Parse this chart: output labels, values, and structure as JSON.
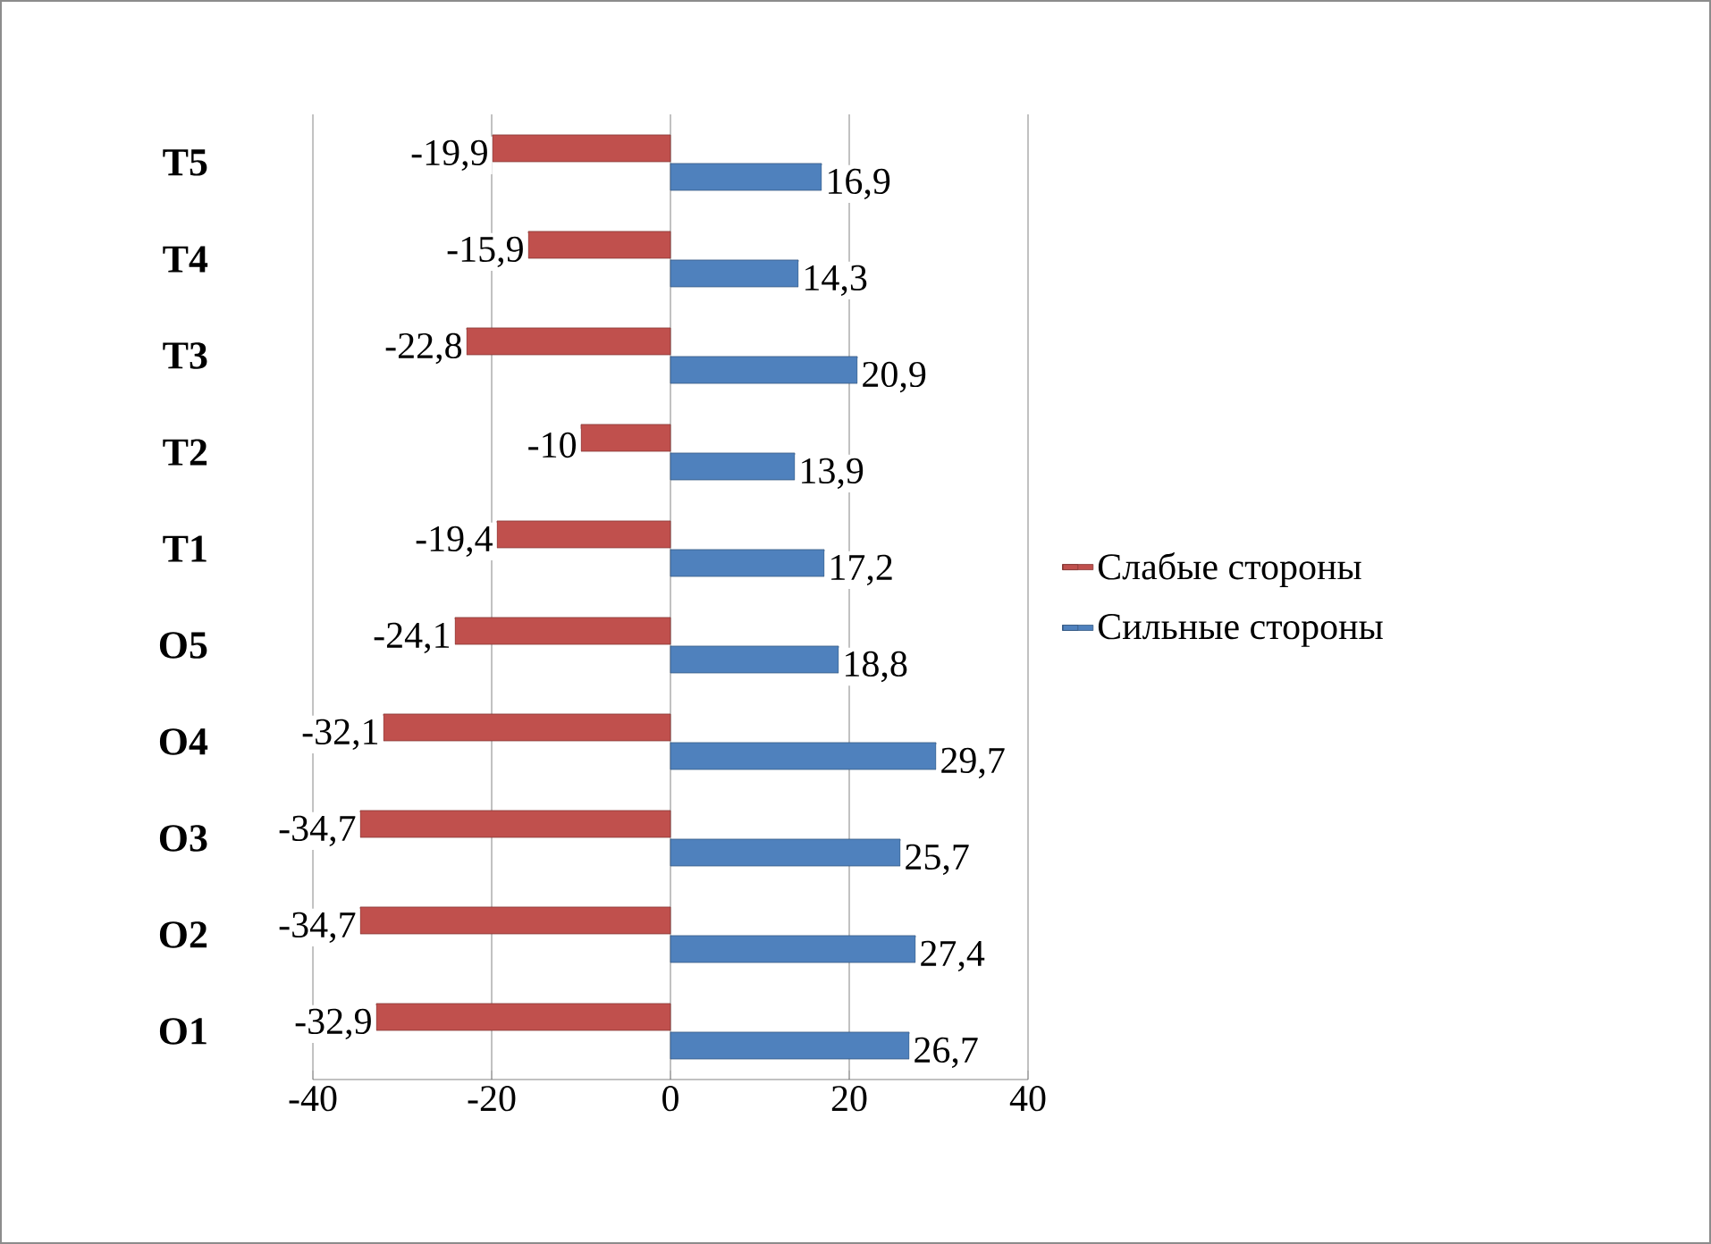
{
  "chart_data": {
    "type": "bar",
    "orientation": "horizontal",
    "categories": [
      "T5",
      "T4",
      "T3",
      "T2",
      "T1",
      "O5",
      "O4",
      "O3",
      "O2",
      "O1"
    ],
    "series": [
      {
        "name": "Слабые стороны",
        "color": "#c0504d",
        "values": [
          -19.9,
          -15.9,
          -22.8,
          -10,
          -19.4,
          -24.1,
          -32.1,
          -34.7,
          -34.7,
          -32.9
        ],
        "value_labels": [
          "-19,9",
          "-15,9",
          "-22,8",
          "-10",
          "-19,4",
          "-24,1",
          "-32,1",
          "-34,7",
          "-34,7",
          "-32,9"
        ]
      },
      {
        "name": "Сильные стороны",
        "color": "#4f81bd",
        "values": [
          16.9,
          14.3,
          20.9,
          13.9,
          17.2,
          18.8,
          29.7,
          25.7,
          27.4,
          26.7
        ],
        "value_labels": [
          "16,9",
          "14,3",
          "20,9",
          "13,9",
          "17,2",
          "18,8",
          "29,7",
          "25,7",
          "27,4",
          "26,7"
        ]
      }
    ],
    "xlim": [
      -40,
      40
    ],
    "xticks": [
      -40,
      -20,
      0,
      20,
      40
    ],
    "grid": "x",
    "legend": "right"
  }
}
